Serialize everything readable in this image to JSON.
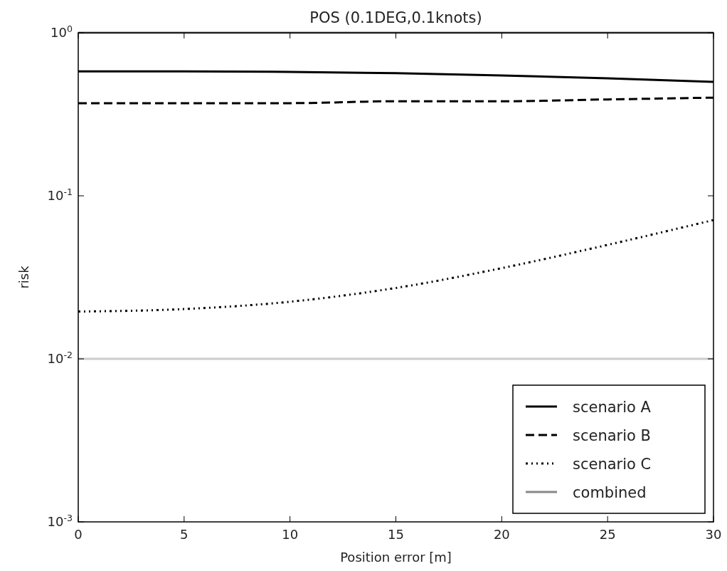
{
  "chart_data": {
    "type": "line",
    "title": "POS (0.1DEG,0.1knots)",
    "xlabel": "Position error [m]",
    "ylabel": "risk",
    "x": [
      0,
      5,
      10,
      15,
      20,
      25,
      30
    ],
    "series": [
      {
        "name": "scenario A",
        "color": "#000000",
        "line_style": "solid",
        "values": [
          0.58,
          0.58,
          0.575,
          0.565,
          0.547,
          0.525,
          0.5
        ]
      },
      {
        "name": "scenario B",
        "color": "#000000",
        "line_style": "dashed",
        "values": [
          0.37,
          0.37,
          0.37,
          0.38,
          0.38,
          0.39,
          0.4
        ]
      },
      {
        "name": "scenario C",
        "color": "#000000",
        "line_style": "dotted",
        "values": [
          0.0195,
          0.0202,
          0.0224,
          0.0272,
          0.036,
          0.05,
          0.071
        ]
      },
      {
        "name": "combined",
        "color": "#888888",
        "line_style": "solid",
        "values": [
          1,
          1,
          1,
          1,
          1,
          1,
          1
        ]
      }
    ],
    "ref_lines": [
      {
        "axis": "y",
        "value": 0.01,
        "color": "#cccccc"
      }
    ],
    "log": "y",
    "xlim": [
      0,
      30
    ],
    "xticks": [
      0,
      5,
      10,
      15,
      20,
      25,
      30
    ],
    "ylim": [
      0.001,
      1
    ],
    "yticks": [
      {
        "value": 0.001,
        "label": "10$^{-3}$"
      },
      {
        "value": 0.01,
        "label": "10$^{-2}$"
      },
      {
        "value": 0.1,
        "label": "10$^{-1}$"
      },
      {
        "value": 1,
        "label": "10$^{0}$"
      }
    ],
    "grid": false,
    "legend": "bottom right",
    "marker": "none"
  }
}
